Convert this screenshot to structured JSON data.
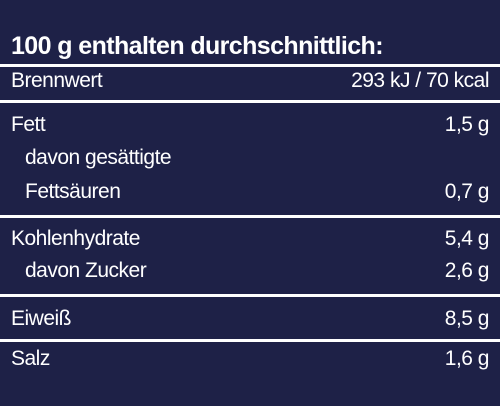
{
  "header": "100 g enthalten durchschnittlich:",
  "rows": {
    "brennwert": {
      "label": "Brennwert",
      "value": "293 kJ / 70 kcal"
    },
    "fett": {
      "label": "Fett",
      "value": "1,5 g"
    },
    "gesaettigte_1": {
      "label": "davon gesättigte"
    },
    "gesaettigte_2": {
      "label": "Fettsäuren",
      "value": "0,7 g"
    },
    "kohlenhydrate": {
      "label": "Kohlenhydrate",
      "value": "5,4 g"
    },
    "zucker": {
      "label": "davon Zucker",
      "value": "2,6 g"
    },
    "eiweiss": {
      "label": "Eiweiß",
      "value": "8,5 g"
    },
    "salz": {
      "label": "Salz",
      "value": "1,6 g"
    }
  }
}
